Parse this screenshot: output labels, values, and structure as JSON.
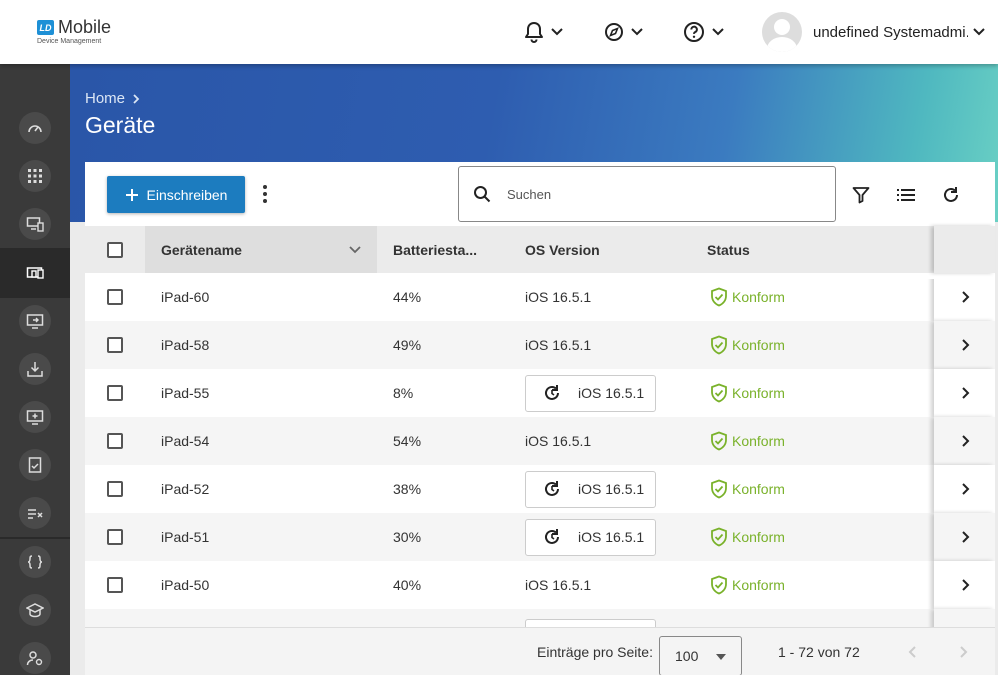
{
  "app": {
    "logo_badge": "LD",
    "logo_title": "Mobile",
    "logo_subtitle": "Device Management"
  },
  "topbar": {
    "icons": [
      "bell-icon",
      "compass-icon",
      "help-icon"
    ],
    "user_name": "undefined Systemadmi..."
  },
  "sidebar": {
    "items": [
      "dashboard-icon",
      "apps-grid-icon",
      "device-settings-icon",
      "devices-icon",
      "screen-share-icon",
      "download-icon",
      "add-device-icon",
      "checklist-icon",
      "policy-icon",
      "braces-icon",
      "school-icon",
      "user-settings-icon"
    ],
    "active_index": 3
  },
  "header": {
    "breadcrumb": "Home",
    "title": "Geräte"
  },
  "toolbar": {
    "enroll_label": "Einschreiben",
    "search_placeholder": "Suchen"
  },
  "table": {
    "columns": [
      "Gerätename",
      "Batteriesta...",
      "OS Version",
      "Status"
    ],
    "rows": [
      {
        "name": "iPad-60",
        "battery": "44%",
        "os": "iOS 16.5.1",
        "os_pending": false,
        "status": "Konform"
      },
      {
        "name": "iPad-58",
        "battery": "49%",
        "os": "iOS 16.5.1",
        "os_pending": false,
        "status": "Konform"
      },
      {
        "name": "iPad-55",
        "battery": "8%",
        "os": "iOS 16.5.1",
        "os_pending": true,
        "status": "Konform"
      },
      {
        "name": "iPad-54",
        "battery": "54%",
        "os": "iOS 16.5.1",
        "os_pending": false,
        "status": "Konform"
      },
      {
        "name": "iPad-52",
        "battery": "38%",
        "os": "iOS 16.5.1",
        "os_pending": true,
        "status": "Konform"
      },
      {
        "name": "iPad-51",
        "battery": "30%",
        "os": "iOS 16.5.1",
        "os_pending": true,
        "status": "Konform"
      },
      {
        "name": "iPad-50",
        "battery": "40%",
        "os": "iOS 16.5.1",
        "os_pending": false,
        "status": "Konform"
      }
    ]
  },
  "footer": {
    "page_size_label": "Einträge pro Seite:",
    "page_size": "100",
    "range": "1 - 72 von 72"
  },
  "colors": {
    "primary": "#1c7cbf",
    "status_ok": "#7ab22b",
    "sidebar": "#3a3a3a"
  }
}
